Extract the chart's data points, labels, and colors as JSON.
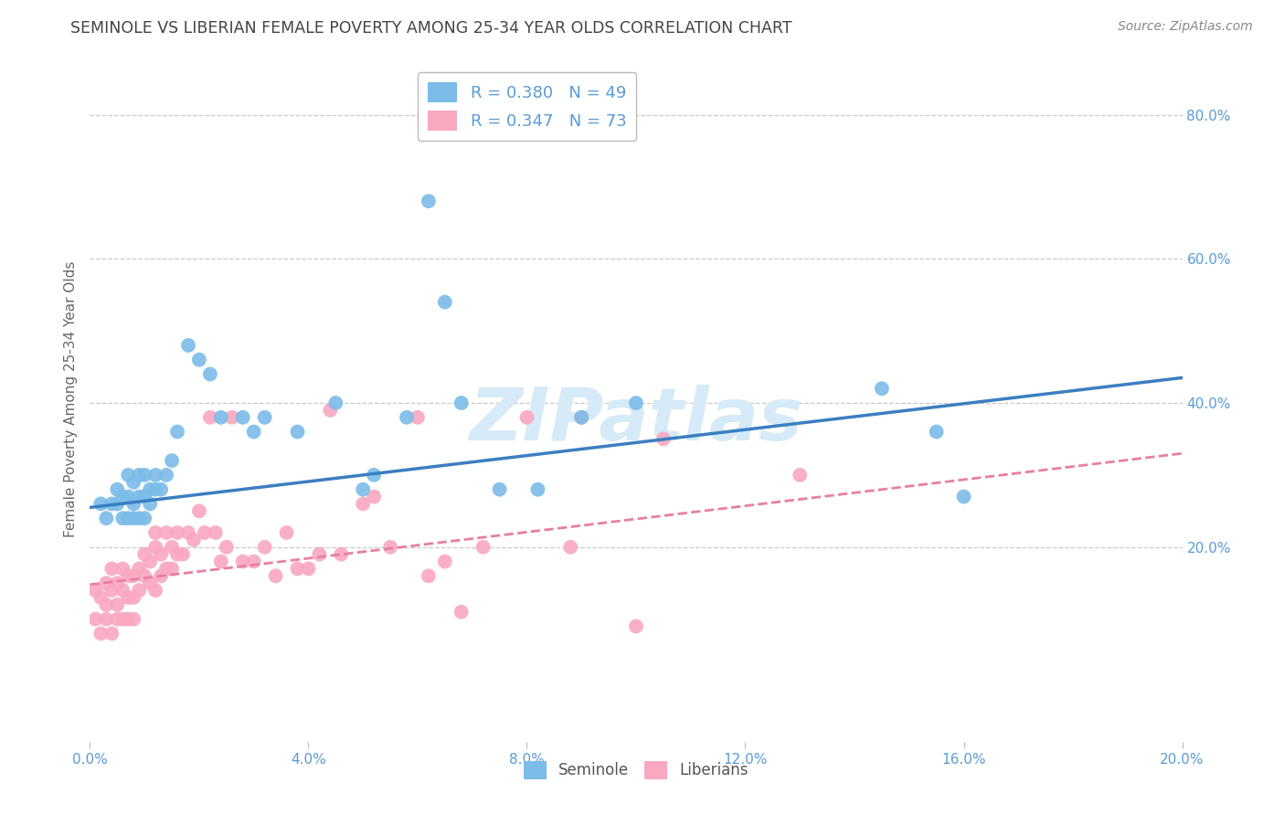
{
  "title": "SEMINOLE VS LIBERIAN FEMALE POVERTY AMONG 25-34 YEAR OLDS CORRELATION CHART",
  "source": "Source: ZipAtlas.com",
  "ylabel": "Female Poverty Among 25-34 Year Olds",
  "xlim": [
    0.0,
    0.2
  ],
  "ylim": [
    -0.07,
    0.88
  ],
  "xticks": [
    0.0,
    0.04,
    0.08,
    0.12,
    0.16,
    0.2
  ],
  "yticks": [
    0.2,
    0.4,
    0.6,
    0.8
  ],
  "ytick_labels": [
    "20.0%",
    "40.0%",
    "60.0%",
    "80.0%"
  ],
  "xtick_labels": [
    "0.0%",
    "4.0%",
    "8.0%",
    "12.0%",
    "16.0%",
    "20.0%"
  ],
  "seminole_R": 0.38,
  "seminole_N": 49,
  "liberian_R": 0.347,
  "liberian_N": 73,
  "seminole_color": "#7bbce8",
  "liberian_color": "#f9a8c0",
  "trend_seminole_color": "#3a7fc1",
  "trend_liberian_color": "#e87fa0",
  "watermark_color": "#d6eaf8",
  "background_color": "#ffffff",
  "grid_color": "#c8c8c8",
  "tick_color": "#5b9bd5",
  "title_color": "#444444",
  "source_color": "#888888",
  "ylabel_color": "#666666",
  "seminole_x": [
    0.002,
    0.003,
    0.004,
    0.005,
    0.005,
    0.006,
    0.006,
    0.007,
    0.007,
    0.007,
    0.008,
    0.008,
    0.008,
    0.009,
    0.009,
    0.009,
    0.01,
    0.01,
    0.01,
    0.011,
    0.011,
    0.012,
    0.012,
    0.013,
    0.014,
    0.015,
    0.016,
    0.018,
    0.02,
    0.022,
    0.024,
    0.028,
    0.03,
    0.032,
    0.038,
    0.045,
    0.05,
    0.052,
    0.058,
    0.062,
    0.065,
    0.068,
    0.075,
    0.082,
    0.09,
    0.1,
    0.145,
    0.155,
    0.16
  ],
  "seminole_y": [
    0.26,
    0.24,
    0.26,
    0.26,
    0.28,
    0.24,
    0.27,
    0.24,
    0.27,
    0.3,
    0.24,
    0.26,
    0.29,
    0.24,
    0.27,
    0.3,
    0.24,
    0.27,
    0.3,
    0.26,
    0.28,
    0.28,
    0.3,
    0.28,
    0.3,
    0.32,
    0.36,
    0.48,
    0.46,
    0.44,
    0.38,
    0.38,
    0.36,
    0.38,
    0.36,
    0.4,
    0.28,
    0.3,
    0.38,
    0.68,
    0.54,
    0.4,
    0.28,
    0.28,
    0.38,
    0.4,
    0.42,
    0.36,
    0.27
  ],
  "liberian_x": [
    0.001,
    0.001,
    0.002,
    0.002,
    0.003,
    0.003,
    0.003,
    0.004,
    0.004,
    0.004,
    0.005,
    0.005,
    0.005,
    0.006,
    0.006,
    0.006,
    0.007,
    0.007,
    0.007,
    0.008,
    0.008,
    0.008,
    0.009,
    0.009,
    0.01,
    0.01,
    0.011,
    0.011,
    0.012,
    0.012,
    0.012,
    0.013,
    0.013,
    0.014,
    0.014,
    0.015,
    0.015,
    0.016,
    0.016,
    0.017,
    0.018,
    0.019,
    0.02,
    0.021,
    0.022,
    0.023,
    0.024,
    0.025,
    0.026,
    0.028,
    0.03,
    0.032,
    0.034,
    0.036,
    0.038,
    0.04,
    0.042,
    0.044,
    0.046,
    0.05,
    0.052,
    0.055,
    0.06,
    0.062,
    0.065,
    0.068,
    0.072,
    0.08,
    0.088,
    0.09,
    0.1,
    0.105,
    0.13
  ],
  "liberian_y": [
    0.14,
    0.1,
    0.13,
    0.08,
    0.12,
    0.15,
    0.1,
    0.14,
    0.08,
    0.17,
    0.12,
    0.15,
    0.1,
    0.14,
    0.1,
    0.17,
    0.13,
    0.1,
    0.16,
    0.13,
    0.16,
    0.1,
    0.14,
    0.17,
    0.16,
    0.19,
    0.15,
    0.18,
    0.2,
    0.14,
    0.22,
    0.16,
    0.19,
    0.17,
    0.22,
    0.17,
    0.2,
    0.19,
    0.22,
    0.19,
    0.22,
    0.21,
    0.25,
    0.22,
    0.38,
    0.22,
    0.18,
    0.2,
    0.38,
    0.18,
    0.18,
    0.2,
    0.16,
    0.22,
    0.17,
    0.17,
    0.19,
    0.39,
    0.19,
    0.26,
    0.27,
    0.2,
    0.38,
    0.16,
    0.18,
    0.11,
    0.2,
    0.38,
    0.2,
    0.38,
    0.09,
    0.35,
    0.3
  ],
  "trend_seminole_x0": 0.0,
  "trend_seminole_y0": 0.255,
  "trend_seminole_x1": 0.2,
  "trend_seminole_y1": 0.435,
  "trend_liberian_x0": 0.0,
  "trend_liberian_y0": 0.148,
  "trend_liberian_x1": 0.2,
  "trend_liberian_y1": 0.33
}
